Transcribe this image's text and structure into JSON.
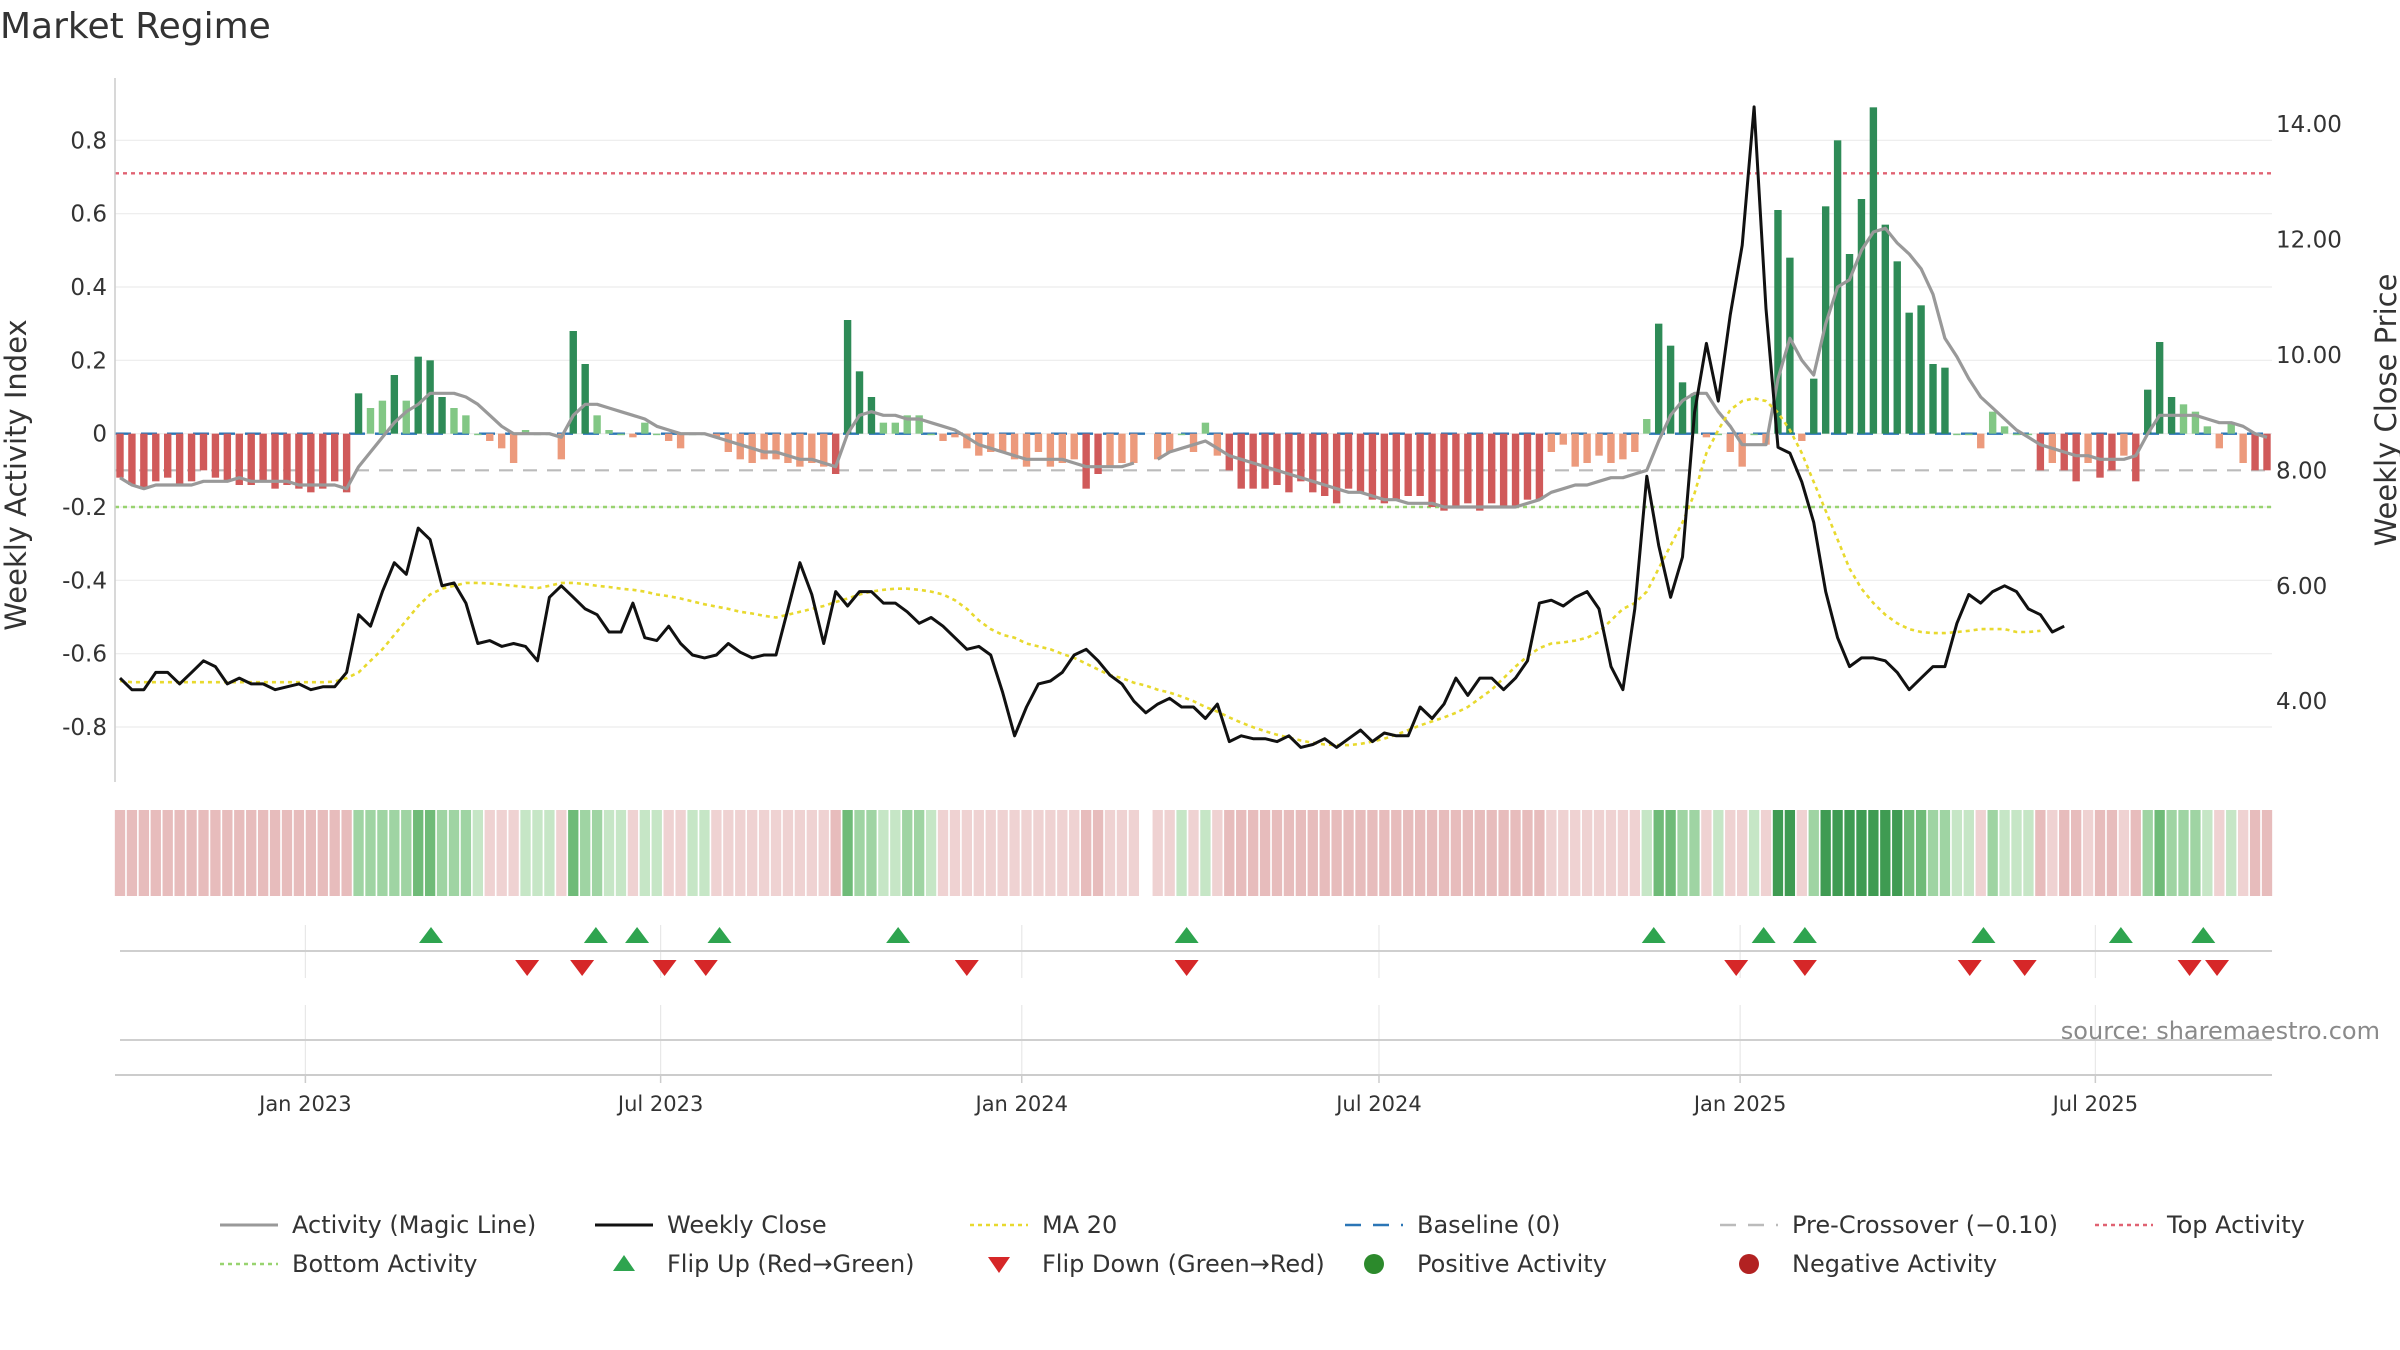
{
  "chart_data": {
    "type": "bar",
    "title": "Market Regime",
    "source": "source: sharemaestro.com",
    "left_axis": {
      "label": "Weekly Activity Index",
      "ylim": [
        -0.95,
        0.97
      ],
      "ticks": [
        "0.8",
        "0.6",
        "0.4",
        "0.2",
        "0",
        "-0.2",
        "-0.4",
        "-0.6",
        "-0.8"
      ],
      "tick_values": [
        0.8,
        0.6,
        0.4,
        0.2,
        0,
        -0.2,
        -0.4,
        -0.6,
        -0.8
      ]
    },
    "right_axis": {
      "label": "Weekly Close Price",
      "ylim": [
        2.6,
        14.8
      ],
      "ticks": [
        "14.00",
        "12.00",
        "10.00",
        "8.00",
        "6.00",
        "4.00"
      ],
      "tick_values": [
        14,
        12,
        10,
        8,
        6,
        4
      ]
    },
    "x_axis": {
      "start": "2022-09-26",
      "end": "2025-09-29",
      "ticks": [
        "Jan 2023",
        "Jul 2023",
        "Jan 2024",
        "Jul 2024",
        "Jan 2025",
        "Jul 2025"
      ],
      "tick_dates": [
        "2023-01-01",
        "2023-07-01",
        "2024-01-01",
        "2024-07-01",
        "2025-01-01",
        "2025-07-01"
      ]
    },
    "grid": true,
    "legend_position": "bottom",
    "reference_lines": {
      "top_activity": 0.71,
      "bottom_activity": -0.2,
      "pre_crossover": -0.1,
      "baseline": 0
    },
    "legend": [
      {
        "label": "Activity (Magic Line)",
        "style": "line",
        "color": "#999999"
      },
      {
        "label": "Weekly Close",
        "style": "line",
        "color": "#111111"
      },
      {
        "label": "MA 20",
        "style": "dotted",
        "color": "#e8d92e"
      },
      {
        "label": "Baseline (0)",
        "style": "dashed",
        "color": "#2b76b6"
      },
      {
        "label": "Pre-Crossover (−0.10)",
        "style": "dashed",
        "color": "#bbbbbb"
      },
      {
        "label": "Top Activity",
        "style": "dotted",
        "color": "#e06272"
      },
      {
        "label": "Bottom Activity",
        "style": "dotted",
        "color": "#98d36f"
      },
      {
        "label": "Flip Up (Red→Green)",
        "style": "triangle-up",
        "color": "#2ea44f"
      },
      {
        "label": "Flip Down (Green→Red)",
        "style": "triangle-down",
        "color": "#d62728"
      },
      {
        "label": "Positive Activity",
        "style": "dot",
        "color": "#2c8a2c"
      },
      {
        "label": "Negative Activity",
        "style": "dot",
        "color": "#b22222"
      }
    ],
    "colors": {
      "pos_strong": "#2e8b57",
      "pos_light": "#82c785",
      "neg_strong": "#d05a5a",
      "neg_light": "#ec9a7c",
      "close": "#111111",
      "ma20": "#e8d92e",
      "magic": "#999999"
    },
    "activity": [
      -0.12,
      -0.14,
      -0.15,
      -0.13,
      -0.12,
      -0.14,
      -0.13,
      -0.1,
      -0.12,
      -0.13,
      -0.14,
      -0.14,
      -0.13,
      -0.15,
      -0.14,
      -0.15,
      -0.16,
      -0.15,
      -0.13,
      -0.16,
      0.11,
      0.07,
      0.09,
      0.16,
      0.09,
      0.21,
      0.2,
      0.1,
      0.07,
      0.05,
      0.0,
      -0.02,
      -0.04,
      -0.08,
      0.01,
      0.0,
      0.0,
      -0.07,
      0.28,
      0.19,
      0.05,
      0.01,
      0.0,
      -0.01,
      0.03,
      0.0,
      -0.02,
      -0.04,
      0.0,
      0.0,
      -0.01,
      -0.05,
      -0.07,
      -0.08,
      -0.07,
      -0.07,
      -0.08,
      -0.09,
      -0.08,
      -0.09,
      -0.11,
      0.31,
      0.17,
      0.1,
      0.03,
      0.03,
      0.05,
      0.05,
      0.0,
      -0.02,
      -0.01,
      -0.04,
      -0.06,
      -0.05,
      -0.05,
      -0.07,
      -0.09,
      -0.05,
      -0.09,
      -0.08,
      -0.07,
      -0.15,
      -0.11,
      -0.09,
      -0.08,
      -0.08,
      null,
      -0.07,
      -0.05,
      0.0,
      -0.05,
      0.03,
      -0.06,
      -0.1,
      -0.15,
      -0.15,
      -0.15,
      -0.14,
      -0.16,
      -0.13,
      -0.16,
      -0.17,
      -0.19,
      -0.15,
      -0.16,
      -0.18,
      -0.19,
      -0.18,
      -0.17,
      -0.17,
      -0.2,
      -0.21,
      -0.2,
      -0.19,
      -0.21,
      -0.19,
      -0.2,
      -0.2,
      -0.18,
      -0.18,
      -0.05,
      -0.03,
      -0.09,
      -0.08,
      -0.06,
      -0.08,
      -0.07,
      -0.05,
      0.04,
      0.3,
      0.24,
      0.14,
      0.11,
      -0.01,
      0.0,
      -0.05,
      -0.09,
      0.0,
      -0.03,
      0.61,
      0.48,
      -0.02,
      0.15,
      0.62,
      0.8,
      0.49,
      0.64,
      0.89,
      0.57,
      0.47,
      0.33,
      0.35,
      0.19,
      0.18,
      0.0,
      0.0,
      -0.04,
      0.06,
      0.02,
      0.0,
      0.0,
      -0.1,
      -0.08,
      -0.1,
      -0.13,
      -0.08,
      -0.12,
      -0.1,
      -0.06,
      -0.13,
      0.12,
      0.25,
      0.1,
      0.08,
      0.06,
      0.02,
      -0.04,
      0.03,
      -0.08,
      -0.1,
      -0.1
    ],
    "magic_line": [
      -0.12,
      -0.14,
      -0.15,
      -0.14,
      -0.14,
      -0.14,
      -0.14,
      -0.13,
      -0.13,
      -0.13,
      -0.12,
      -0.13,
      -0.13,
      -0.13,
      -0.13,
      -0.14,
      -0.14,
      -0.14,
      -0.14,
      -0.15,
      -0.09,
      -0.05,
      -0.01,
      0.03,
      0.06,
      0.08,
      0.11,
      0.11,
      0.11,
      0.1,
      0.08,
      0.05,
      0.02,
      0.0,
      0.0,
      0.0,
      0.0,
      -0.01,
      0.05,
      0.08,
      0.08,
      0.07,
      0.06,
      0.05,
      0.04,
      0.02,
      0.01,
      0.0,
      0.0,
      0.0,
      -0.01,
      -0.02,
      -0.03,
      -0.04,
      -0.05,
      -0.05,
      -0.06,
      -0.07,
      -0.07,
      -0.08,
      -0.09,
      0.0,
      0.05,
      0.06,
      0.05,
      0.05,
      0.04,
      0.04,
      0.03,
      0.02,
      0.01,
      -0.01,
      -0.03,
      -0.04,
      -0.05,
      -0.06,
      -0.07,
      -0.07,
      -0.07,
      -0.07,
      -0.08,
      -0.09,
      -0.09,
      -0.09,
      -0.09,
      -0.08,
      null,
      -0.07,
      -0.05,
      -0.04,
      -0.03,
      -0.02,
      -0.04,
      -0.06,
      -0.07,
      -0.08,
      -0.09,
      -0.1,
      -0.11,
      -0.12,
      -0.13,
      -0.14,
      -0.15,
      -0.16,
      -0.16,
      -0.17,
      -0.18,
      -0.18,
      -0.19,
      -0.19,
      -0.19,
      -0.2,
      -0.2,
      -0.2,
      -0.2,
      -0.2,
      -0.2,
      -0.2,
      -0.19,
      -0.18,
      -0.16,
      -0.15,
      -0.14,
      -0.14,
      -0.13,
      -0.12,
      -0.12,
      -0.11,
      -0.1,
      -0.02,
      0.05,
      0.09,
      0.11,
      0.11,
      0.06,
      0.02,
      -0.03,
      -0.03,
      -0.03,
      0.15,
      0.26,
      0.2,
      0.16,
      0.3,
      0.4,
      0.42,
      0.5,
      0.55,
      0.56,
      0.52,
      0.49,
      0.45,
      0.38,
      0.26,
      0.21,
      0.15,
      0.1,
      0.07,
      0.04,
      0.01,
      -0.01,
      -0.03,
      -0.04,
      -0.05,
      -0.06,
      -0.06,
      -0.07,
      -0.07,
      -0.07,
      -0.06,
      0.0,
      0.05,
      0.05,
      0.05,
      0.05,
      0.04,
      0.03,
      0.03,
      0.02,
      0.0,
      -0.01
    ],
    "close": [
      4.4,
      4.2,
      4.2,
      4.5,
      4.5,
      4.3,
      4.5,
      4.7,
      4.6,
      4.3,
      4.4,
      4.3,
      4.3,
      4.2,
      4.25,
      4.3,
      4.2,
      4.25,
      4.25,
      4.5,
      5.5,
      5.3,
      5.9,
      6.4,
      6.2,
      7.0,
      6.8,
      6.0,
      6.05,
      5.7,
      5.0,
      5.05,
      4.95,
      5.0,
      4.95,
      4.7,
      5.8,
      6.0,
      5.8,
      5.6,
      5.5,
      5.2,
      5.2,
      5.7,
      5.1,
      5.05,
      5.3,
      5.0,
      4.8,
      4.75,
      4.8,
      5.0,
      4.85,
      4.75,
      4.8,
      4.8,
      5.6,
      6.4,
      5.85,
      5.0,
      5.9,
      5.65,
      5.9,
      5.9,
      5.7,
      5.7,
      5.55,
      5.35,
      5.45,
      5.3,
      5.1,
      4.9,
      4.95,
      4.8,
      4.15,
      3.4,
      3.9,
      4.3,
      4.35,
      4.5,
      4.8,
      4.9,
      4.7,
      4.45,
      4.3,
      4.0,
      3.8,
      3.95,
      4.05,
      3.9,
      3.9,
      3.7,
      3.95,
      3.3,
      3.4,
      3.35,
      3.35,
      3.3,
      3.4,
      3.2,
      3.25,
      3.35,
      3.2,
      3.35,
      3.5,
      3.3,
      3.45,
      3.4,
      3.4,
      3.9,
      3.7,
      3.95,
      4.4,
      4.1,
      4.4,
      4.4,
      4.2,
      4.4,
      4.7,
      5.7,
      5.75,
      5.65,
      5.8,
      5.9,
      5.6,
      4.6,
      4.2,
      5.6,
      7.9,
      6.7,
      5.8,
      6.5,
      9.0,
      10.2,
      9.2,
      10.7,
      11.9,
      14.3,
      10.8,
      8.4,
      8.3,
      7.8,
      7.1,
      5.9,
      5.1,
      4.6,
      4.75,
      4.75,
      4.7,
      4.5,
      4.2,
      4.4,
      4.6,
      4.6,
      5.35,
      5.85,
      5.7,
      5.9,
      6.0,
      5.9,
      5.6,
      5.5,
      5.2,
      5.3
    ],
    "ma20": [
      4.35,
      4.33,
      4.33,
      4.33,
      4.33,
      4.33,
      4.33,
      4.33,
      4.33,
      4.33,
      4.33,
      4.33,
      4.33,
      4.33,
      4.33,
      4.33,
      4.33,
      4.33,
      4.34,
      4.4,
      4.5,
      4.7,
      4.9,
      5.15,
      5.4,
      5.65,
      5.85,
      5.95,
      6.0,
      6.05,
      6.05,
      6.04,
      6.02,
      6.0,
      5.98,
      5.96,
      6.0,
      6.05,
      6.05,
      6.03,
      6.0,
      5.98,
      5.95,
      5.93,
      5.9,
      5.85,
      5.82,
      5.78,
      5.73,
      5.68,
      5.64,
      5.6,
      5.55,
      5.52,
      5.48,
      5.45,
      5.5,
      5.55,
      5.6,
      5.65,
      5.72,
      5.78,
      5.85,
      5.9,
      5.93,
      5.95,
      5.95,
      5.93,
      5.9,
      5.85,
      5.75,
      5.6,
      5.4,
      5.25,
      5.15,
      5.1,
      5.0,
      4.95,
      4.9,
      4.82,
      4.75,
      4.65,
      4.55,
      4.45,
      4.4,
      4.32,
      4.27,
      4.2,
      4.15,
      4.08,
      4.0,
      3.9,
      3.82,
      3.72,
      3.63,
      3.55,
      3.48,
      3.42,
      3.37,
      3.32,
      3.28,
      3.25,
      3.24,
      3.24,
      3.26,
      3.3,
      3.35,
      3.42,
      3.5,
      3.58,
      3.65,
      3.72,
      3.8,
      3.9,
      4.05,
      4.2,
      4.4,
      4.6,
      4.78,
      4.92,
      5.0,
      5.02,
      5.05,
      5.1,
      5.2,
      5.4,
      5.6,
      5.7,
      5.9,
      6.3,
      6.7,
      7.1,
      7.6,
      8.3,
      8.7,
      9.05,
      9.2,
      9.25,
      9.2,
      9.0,
      8.7,
      8.3,
      7.8,
      7.3,
      6.8,
      6.3,
      5.95,
      5.7,
      5.5,
      5.35,
      5.25,
      5.2,
      5.18,
      5.18,
      5.2,
      5.22,
      5.25,
      5.25,
      5.25,
      5.2,
      5.2,
      5.22
    ],
    "flip_up": [
      "2023-03-06",
      "2023-05-29",
      "2023-06-19",
      "2023-07-31",
      "2023-10-30",
      "2024-03-25",
      "2024-11-18",
      "2025-01-13",
      "2025-02-03",
      "2025-05-05",
      "2025-07-14",
      "2025-08-25"
    ],
    "flip_down": [
      "2023-04-24",
      "2023-05-22",
      "2023-07-03",
      "2023-07-24",
      "2023-12-04",
      "2024-03-25",
      "2024-12-30",
      "2025-02-03",
      "2025-04-28",
      "2025-05-26",
      "2025-08-18",
      "2025-09-01"
    ]
  }
}
